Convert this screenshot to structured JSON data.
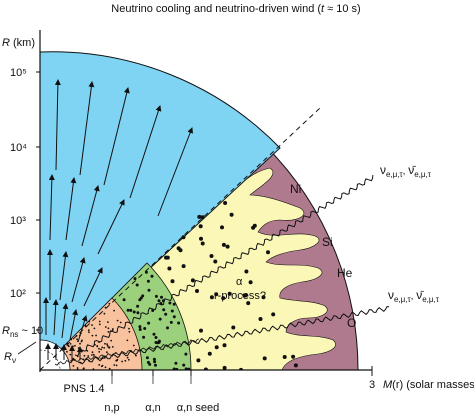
{
  "title": "Neutrino cooling and neutrino-driven wind (t ≈ 10 s)",
  "axes": {
    "y_label": "R (km)",
    "y_ticks": [
      "10⁵",
      "10⁴",
      "10³",
      "10²",
      "R_ns ~ 10",
      "R_ν"
    ],
    "x_label": "M(r) (solar masses)",
    "x_tick": "3"
  },
  "regions": {
    "ni": "Ni",
    "si": "Si",
    "he": "He",
    "o": "O",
    "alpha": "α",
    "rprocess": "r-process?"
  },
  "bottom_labels": {
    "pns": "PNS 1.4",
    "np": "n,p",
    "an": "α,n",
    "seed": "α,n seed"
  },
  "neutrino_labels": {
    "upper": "ν e,μ,τ, ν̄ e,μ,τ",
    "lower": "ν e,μ,τ, ν̄ e,μ,τ"
  },
  "colors": {
    "wind_blue": "#7fd3f3",
    "outer_mauve": "#b07a8e",
    "r_process_yellow": "#fbf7b6",
    "seed_green": "#9bd07c",
    "pns_orange": "#f7c29d"
  }
}
